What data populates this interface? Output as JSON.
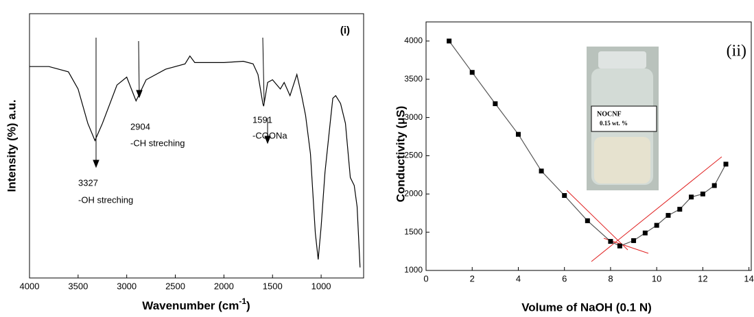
{
  "chart_data": [
    {
      "type": "line",
      "label": "(i)",
      "x_label": "Wavenumber (cm",
      "x_label_sup": "-1",
      "x_label_end": ")",
      "y_label": "Intensity (%) a.u.",
      "color": "#000000",
      "xlim": [
        4000,
        563
      ],
      "ylim": [
        0,
        100
      ],
      "xticks": [
        4000,
        3500,
        3000,
        2500,
        2000,
        1500,
        1000
      ],
      "x": [
        4000,
        3800,
        3600,
        3500,
        3400,
        3327,
        3250,
        3100,
        3000,
        2904,
        2800,
        2600,
        2400,
        2350,
        2300,
        2000,
        1800,
        1700,
        1650,
        1600,
        1591,
        1550,
        1500,
        1420,
        1380,
        1320,
        1250,
        1200,
        1160,
        1110,
        1060,
        1030,
        1000,
        960,
        900,
        880,
        850,
        800,
        750,
        700,
        660,
        630,
        600
      ],
      "values": [
        80,
        80,
        78,
        71.5,
        58.5,
        52,
        58.5,
        73,
        76,
        67,
        75,
        79,
        81,
        84,
        81.5,
        81.5,
        82,
        81,
        77,
        66,
        65,
        74,
        75,
        71.5,
        74,
        69,
        77,
        69,
        61.5,
        47,
        17,
        7,
        19.5,
        40,
        61,
        68,
        69,
        66,
        58.5,
        38,
        35,
        27,
        4
      ],
      "annotations": [
        "3327",
        "-OH streching",
        "2904",
        "-CH streching",
        "1591",
        "-COONa"
      ]
    },
    {
      "type": "line",
      "label": "(ii)",
      "x_label": "Volume of NaOH (0.1 N)",
      "y_label": "Conductivity (μS)",
      "color": "#555555",
      "marker_color": "#000000",
      "xlim": [
        0,
        14.1
      ],
      "ylim": [
        1000,
        4250
      ],
      "xticks": [
        0,
        2,
        4,
        6,
        8,
        10,
        12,
        14
      ],
      "yticks": [
        1000,
        1500,
        2000,
        2500,
        3000,
        3500,
        4000
      ],
      "x": [
        1,
        2,
        3,
        4,
        5,
        6,
        7,
        8,
        8.4,
        9,
        9.5,
        10,
        10.5,
        11,
        11.5,
        12,
        12.5,
        13
      ],
      "values": [
        4000,
        3590,
        3180,
        2780,
        2300,
        1980,
        1650,
        1380,
        1320,
        1390,
        1490,
        1590,
        1720,
        1800,
        1960,
        2000,
        2110,
        2390
      ],
      "inset": [
        "NOCNF",
        "0.15 wt. %"
      ]
    }
  ]
}
